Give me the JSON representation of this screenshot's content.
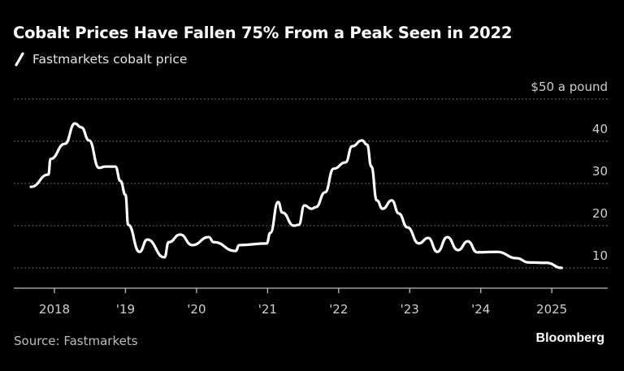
{
  "chart_data": {
    "type": "line",
    "title": "Cobalt Prices Have Fallen 75% From a Peak Seen in 2022",
    "xlabel": "",
    "ylabel": "",
    "y_unit_label": "$50 a pound",
    "ylim": [
      5,
      50
    ],
    "yticks": [
      10,
      20,
      30,
      40,
      50
    ],
    "ytick_labels": [
      "10",
      "20",
      "30",
      "40",
      "$50 a pound"
    ],
    "xticks": [
      "2018-01-01",
      "2019-01-01",
      "2020-01-01",
      "2021-01-01",
      "2022-01-01",
      "2023-01-01",
      "2024-01-01",
      "2025-01-01"
    ],
    "xtick_labels": [
      "2018",
      "'19",
      "'20",
      "'21",
      "'22",
      "'23",
      "'24",
      "2025"
    ],
    "grid": "horizontal dotted",
    "legend": "top-left",
    "series": [
      {
        "name": "Fastmarkets cobalt price",
        "color": "#ffffff",
        "x": [
          "2017-09-02",
          "2017-12-01",
          "2017-12-12",
          "2018-02-24",
          "2018-04-16",
          "2018-05-19",
          "2018-06-28",
          "2018-08-18",
          "2018-09-20",
          "2018-11-10",
          "2018-12-06",
          "2019-01-01",
          "2019-01-15",
          "2019-03-14",
          "2019-04-23",
          "2019-07-20",
          "2019-08-11",
          "2019-10-09",
          "2019-12-10",
          "2020-03-04",
          "2020-03-29",
          "2020-07-20",
          "2020-08-08",
          "2020-12-27",
          "2021-01-15",
          "2021-02-24",
          "2021-03-18",
          "2021-05-16",
          "2021-06-10",
          "2021-07-09",
          "2021-08-15",
          "2021-09-06",
          "2021-10-23",
          "2021-12-06",
          "2022-02-06",
          "2022-03-11",
          "2022-05-01",
          "2022-05-27",
          "2022-06-18",
          "2022-07-16",
          "2022-08-15",
          "2022-10-01",
          "2022-11-06",
          "2022-12-20",
          "2023-02-17",
          "2023-04-06",
          "2023-05-23",
          "2023-07-13",
          "2023-09-06",
          "2023-10-27",
          "2023-12-13",
          "2024-03-25",
          "2024-07-05",
          "2024-09-02",
          "2024-12-06",
          "2025-02-21"
        ],
        "values": [
          29.2,
          32.1,
          35.8,
          39.4,
          44.2,
          43.3,
          40.2,
          33.7,
          34.0,
          34.0,
          30.6,
          27.3,
          20.2,
          13.8,
          16.7,
          12.5,
          16.1,
          17.9,
          15.4,
          17.3,
          16.1,
          14.0,
          15.4,
          15.8,
          18.3,
          25.6,
          23.1,
          20.0,
          20.2,
          24.8,
          24.0,
          24.4,
          27.9,
          33.5,
          35.0,
          38.8,
          40.2,
          39.2,
          34.0,
          26.0,
          24.0,
          26.0,
          22.9,
          19.6,
          15.8,
          17.1,
          13.8,
          17.3,
          14.2,
          16.3,
          13.7,
          13.8,
          12.3,
          11.3,
          11.2,
          10.0
        ]
      }
    ]
  },
  "footer": {
    "source": "Source: Fastmarkets",
    "logo": "Bloomberg"
  }
}
